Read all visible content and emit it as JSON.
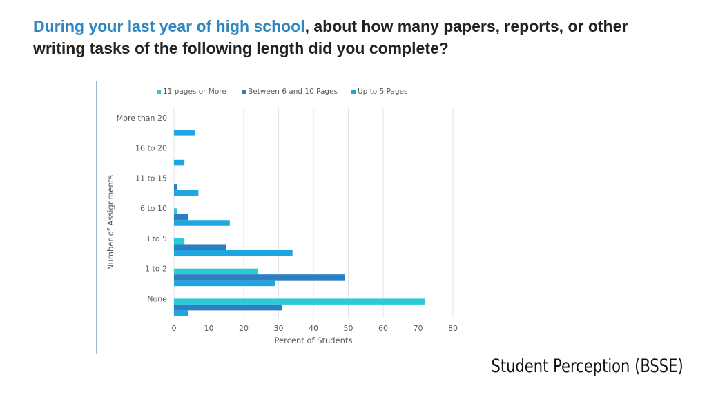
{
  "slide": {
    "title_highlight": "During your last year of high school",
    "title_rest": ", about how many papers, reports, or other writing tasks of the following length did you complete?",
    "footer": "Student Perception (BSSE)"
  },
  "colors": {
    "series": [
      "#2ecad4",
      "#2d7fc4",
      "#1fa6e0"
    ],
    "grid": "#e3e3e3",
    "text": "#595959"
  },
  "chart_data": {
    "type": "bar",
    "orientation": "horizontal",
    "categories": [
      "More than 20",
      "16 to 20",
      "11 to 15",
      "6 to 10",
      "3 to 5",
      "1 to 2",
      "None"
    ],
    "series": [
      {
        "name": "11 pages or More",
        "values": [
          0,
          0,
          0,
          1,
          3,
          24,
          72
        ]
      },
      {
        "name": "Between 6 and 10 Pages",
        "values": [
          0,
          0,
          1,
          4,
          15,
          49,
          31
        ]
      },
      {
        "name": "Up to 5 Pages",
        "values": [
          6,
          3,
          7,
          16,
          34,
          29,
          4
        ]
      }
    ],
    "xlabel": "Percent of Students",
    "ylabel": "Number of Assignments",
    "xlim": [
      0,
      80
    ],
    "xticks": [
      0,
      10,
      20,
      30,
      40,
      50,
      60,
      70,
      80
    ],
    "grid": true,
    "legend_position": "top"
  }
}
